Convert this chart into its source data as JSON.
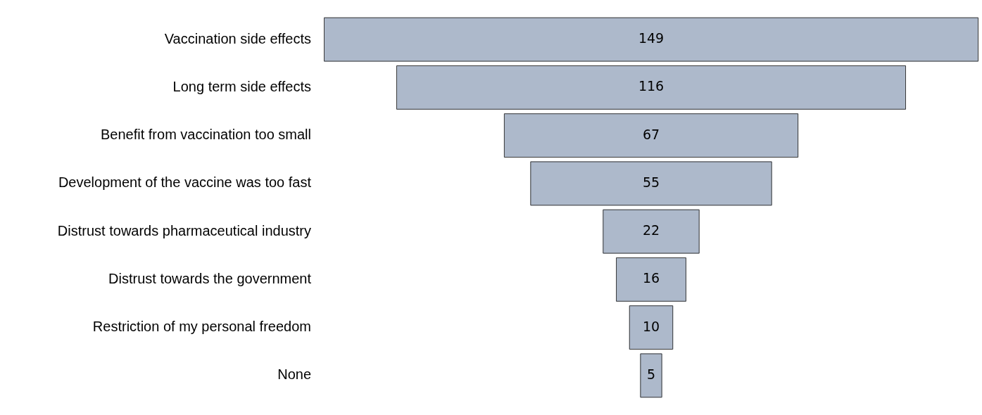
{
  "chart_data": {
    "type": "other",
    "categories": [
      "Vaccination side effects",
      "Long term side effects",
      "Benefit from vaccination too small",
      "Development of the vaccine was too fast",
      "Distrust towards pharmaceutical industry",
      "Distrust towards the government",
      "Restriction of my personal freedom",
      "None"
    ],
    "values": [
      149,
      116,
      67,
      55,
      22,
      16,
      10,
      5
    ],
    "color": "#adb9cb",
    "data_labels": true
  }
}
